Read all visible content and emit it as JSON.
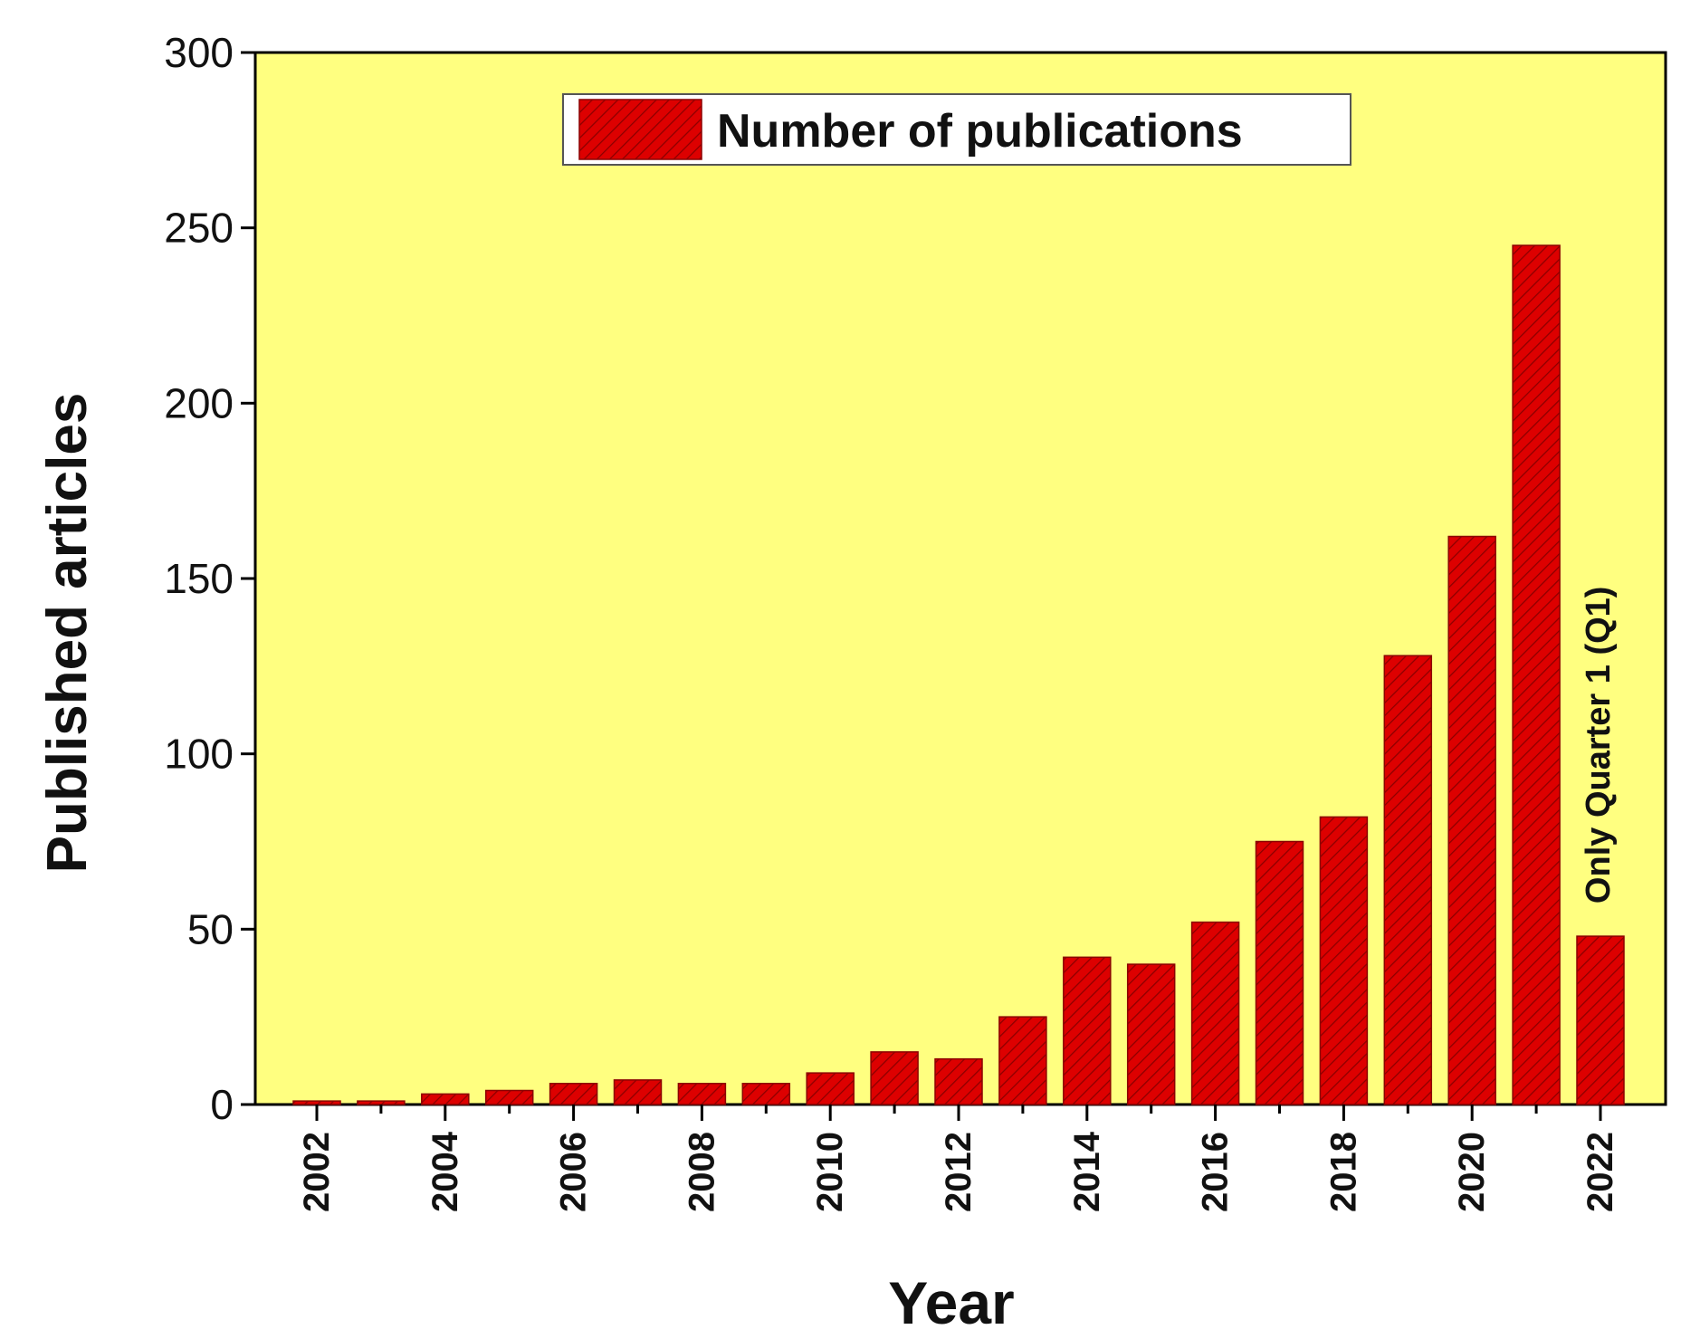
{
  "chart_data": {
    "type": "bar",
    "categories": [
      2002,
      2003,
      2004,
      2005,
      2006,
      2007,
      2008,
      2009,
      2010,
      2011,
      2012,
      2013,
      2014,
      2015,
      2016,
      2017,
      2018,
      2019,
      2020,
      2021,
      2022
    ],
    "x_tick_labels": [
      "2002",
      "2004",
      "2006",
      "2008",
      "2010",
      "2012",
      "2014",
      "2016",
      "2018",
      "2020",
      "2022"
    ],
    "series": [
      {
        "name": "Number of publications",
        "values": [
          1,
          1,
          3,
          4,
          6,
          7,
          6,
          6,
          9,
          15,
          13,
          25,
          42,
          40,
          52,
          75,
          82,
          128,
          162,
          245,
          48
        ]
      }
    ],
    "xlabel": "Year",
    "ylabel": "Published articles",
    "ylim": [
      0,
      300
    ],
    "y_ticks": [
      0,
      50,
      100,
      150,
      200,
      250,
      300
    ],
    "legend_position": "top-center",
    "annotation": {
      "text": "Only Quarter 1 (Q1)",
      "category": 2022
    },
    "grid": false,
    "colors": {
      "plot_background": "#FFFF80",
      "bar_fill": "#DD0000",
      "bar_hatch": "#8B0000",
      "axis": "#000000"
    }
  }
}
